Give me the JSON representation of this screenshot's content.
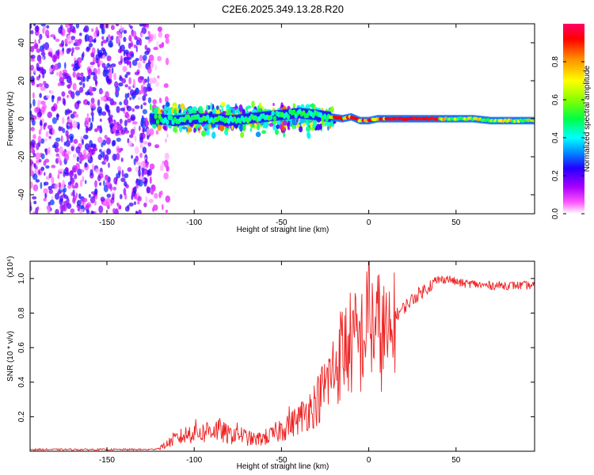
{
  "title": "C2E6.2025.349.13.28.R20",
  "chart_data": [
    {
      "type": "heatmap",
      "name": "spectrogram",
      "xlabel": "Height of straight line (km)",
      "ylabel": "Frequency (Hz)",
      "xlim": [
        -194,
        95
      ],
      "ylim": [
        -50,
        50
      ],
      "xticks": [
        -150,
        -100,
        -50,
        0,
        50
      ],
      "yticks": [
        -40,
        -20,
        0,
        20,
        40
      ],
      "colorbar": {
        "label": "Normalized spectral amplitude",
        "range": [
          0,
          1
        ],
        "ticks": [
          0.0,
          0.2,
          0.4,
          0.6,
          0.8
        ],
        "colors": [
          "#ffffff",
          "#ff00ff",
          "#8800ff",
          "#0000ff",
          "#00ffff",
          "#00ff00",
          "#ffff00",
          "#ff8800",
          "#ff0000"
        ]
      },
      "regions": [
        {
          "x_from": -194,
          "x_to": -125,
          "freq_from": -50,
          "freq_to": 50,
          "description": "broadband noise",
          "amplitude": 0.08
        },
        {
          "x_from": -125,
          "x_to": -115,
          "freq_from": -50,
          "freq_to": 50,
          "description": "sparse noise",
          "amplitude": 0.04
        },
        {
          "x_from": -125,
          "x_to": -20,
          "freq_from": -10,
          "freq_to": 10,
          "description": "signal band",
          "amplitude": 0.35
        },
        {
          "x_from": -20,
          "x_to": 95,
          "freq_from": -3,
          "freq_to": 3,
          "description": "carrier line",
          "amplitude": 0.95
        }
      ],
      "line": {
        "x": [
          -125,
          -110,
          -100,
          -90,
          -80,
          -70,
          -60,
          -50,
          -40,
          -30,
          -22,
          -15,
          -10,
          -5,
          0,
          5,
          10,
          20,
          30,
          40,
          50,
          60,
          70,
          80,
          90,
          95
        ],
        "freq": [
          0,
          -1,
          0,
          0,
          -1,
          0,
          1,
          2,
          3,
          2,
          1,
          0,
          1,
          -1,
          -1,
          0,
          0,
          0,
          0,
          0,
          0,
          0,
          -1,
          -1,
          -1,
          -1
        ]
      }
    },
    {
      "type": "line",
      "name": "snr",
      "xlabel": "Height of straight line (km)",
      "ylabel": "SNR (10 * v/v)",
      "scale_label": "(x10⁴)",
      "xlim": [
        -194,
        95
      ],
      "ylim": [
        0,
        1.1
      ],
      "xticks": [
        -150,
        -100,
        -50,
        0,
        50
      ],
      "yticks": [
        0.2,
        0.4,
        0.6,
        0.8,
        1.0
      ],
      "series": [
        {
          "name": "SNR",
          "color": "#ee2222",
          "x": [
            -194,
            -180,
            -160,
            -140,
            -125,
            -118,
            -112,
            -105,
            -100,
            -95,
            -90,
            -85,
            -80,
            -75,
            -70,
            -65,
            -60,
            -55,
            -50,
            -45,
            -40,
            -35,
            -30,
            -25,
            -20,
            -15,
            -10,
            -5,
            0,
            5,
            10,
            13,
            15,
            20,
            25,
            30,
            35,
            40,
            45,
            50,
            55,
            60,
            65,
            70,
            75,
            80,
            85,
            90,
            95
          ],
          "y": [
            0.01,
            0.01,
            0.01,
            0.01,
            0.01,
            0.02,
            0.05,
            0.07,
            0.09,
            0.08,
            0.1,
            0.09,
            0.07,
            0.08,
            0.06,
            0.05,
            0.06,
            0.07,
            0.1,
            0.13,
            0.16,
            0.2,
            0.24,
            0.32,
            0.4,
            0.5,
            0.53,
            0.53,
            0.62,
            0.6,
            0.56,
            0.5,
            0.78,
            0.83,
            0.88,
            0.92,
            0.96,
            0.99,
            1.0,
            0.98,
            0.97,
            0.97,
            0.96,
            0.96,
            0.96,
            0.96,
            0.96,
            0.96,
            0.96
          ]
        }
      ]
    }
  ]
}
